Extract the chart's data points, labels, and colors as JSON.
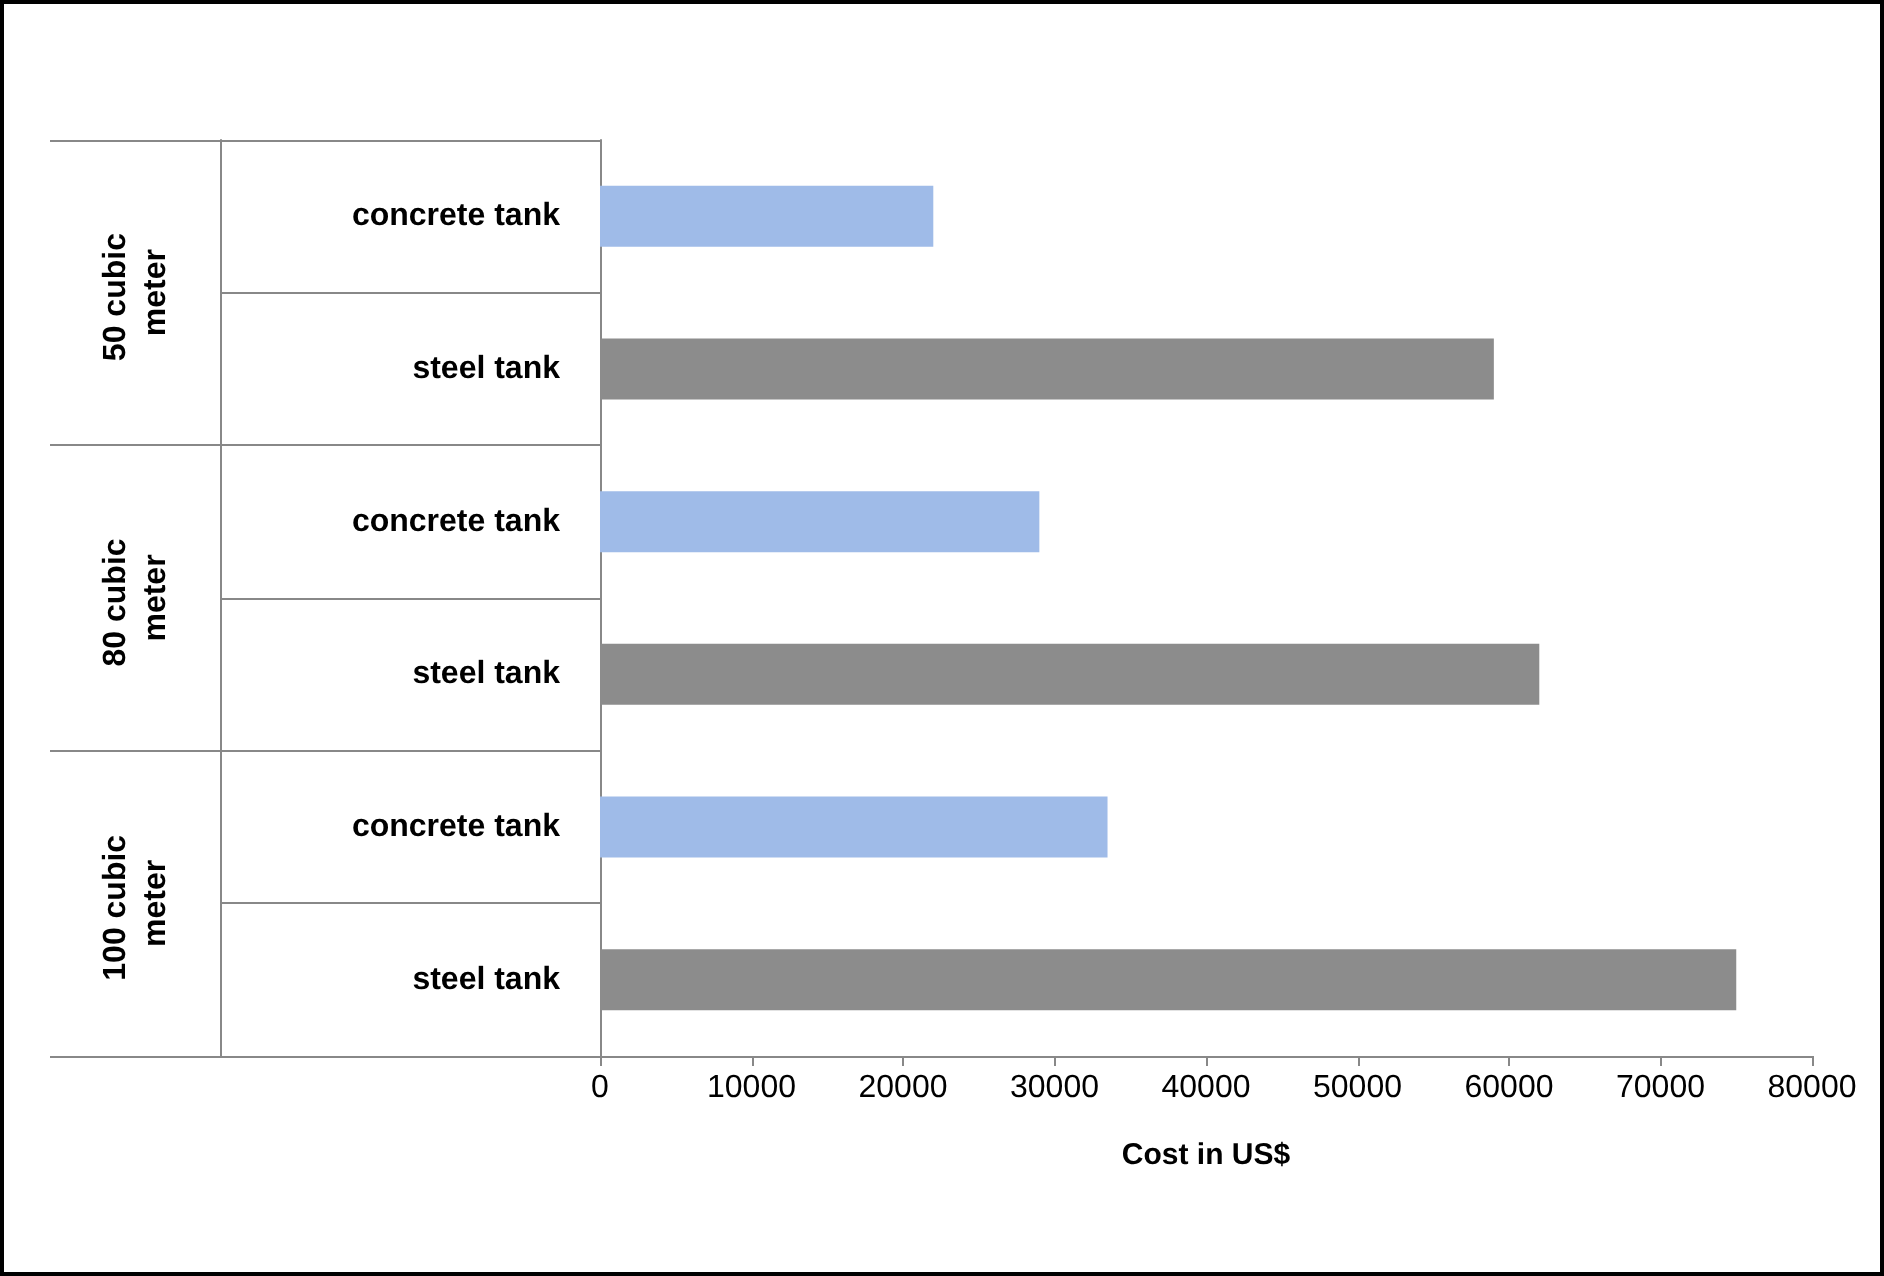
{
  "chart_data": {
    "type": "bar",
    "orientation": "horizontal",
    "xlabel": "Cost in US$",
    "categories": [
      "concrete tank",
      "steel tank",
      "concrete tank",
      "steel tank",
      "concrete tank",
      "steel tank"
    ],
    "values": [
      22000,
      59000,
      29000,
      62000,
      33500,
      75000
    ],
    "colors": [
      "#9fbbe8",
      "#8c8c8c",
      "#9fbbe8",
      "#8c8c8c",
      "#9fbbe8",
      "#8c8c8c"
    ],
    "annotations": [
      "50 cubic meter",
      "80 cubic meter",
      "100 cubic meter"
    ],
    "xlim": [
      0,
      80000
    ],
    "xticks": [
      0,
      10000,
      20000,
      30000,
      40000,
      50000,
      60000,
      70000,
      80000
    ],
    "grid": false
  }
}
